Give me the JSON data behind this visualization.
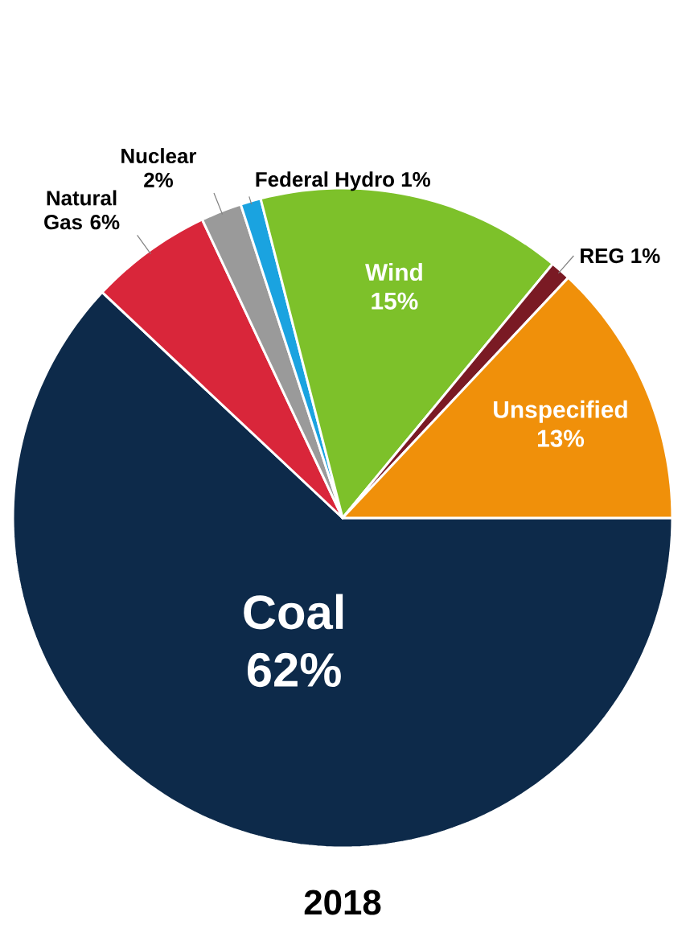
{
  "chart_data": {
    "type": "pie",
    "title": "2018",
    "categories": [
      "Coal",
      "Natural Gas",
      "Nuclear",
      "Federal Hydro",
      "Wind",
      "REG",
      "Unspecified"
    ],
    "values": [
      62,
      6,
      2,
      1,
      15,
      1,
      13
    ],
    "value_labels": [
      "62%",
      "6%",
      "2%",
      "1%",
      "15%",
      "1%",
      "13%"
    ],
    "colors": [
      "#0d2a4a",
      "#d9263a",
      "#9a9a9a",
      "#1aa3e0",
      "#7dc12a",
      "#7a1a24",
      "#f0900a"
    ]
  }
}
